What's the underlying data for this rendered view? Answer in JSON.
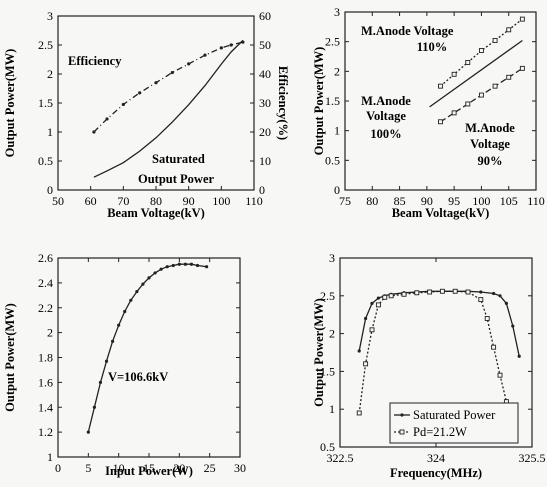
{
  "chart_data": [
    {
      "type": "line",
      "xlabel": "Beam Voltage(kV)",
      "ylabel": "Output Power(MW)",
      "ylabel_right": "Efficiency(%)",
      "xlim": [
        50,
        110
      ],
      "ylim": [
        0,
        3
      ],
      "ylim_right": [
        0,
        60
      ],
      "xticks": [
        "50",
        "60",
        "70",
        "80",
        "90",
        "100",
        "110"
      ],
      "yticks": [
        "0",
        "0.5",
        "1",
        "1.5",
        "2",
        "2.5",
        "3"
      ],
      "yticks_right": [
        "0",
        "10",
        "20",
        "30",
        "40",
        "50",
        "60"
      ],
      "annotations": [
        "Efficiency",
        "Saturated",
        "Output Power"
      ],
      "series": [
        {
          "axis": "left",
          "style": "solid",
          "x": [
            61,
            65,
            70,
            75,
            80,
            85,
            90,
            95,
            100,
            103,
            106.6
          ],
          "y": [
            0.22,
            0.33,
            0.47,
            0.67,
            0.9,
            1.17,
            1.47,
            1.8,
            2.17,
            2.38,
            2.58
          ]
        },
        {
          "axis": "right",
          "style": "dash-dot",
          "marker": "dot",
          "x": [
            61,
            65,
            70,
            75,
            80,
            85,
            90,
            95,
            100,
            103,
            106.6
          ],
          "y": [
            20,
            24.5,
            29.5,
            33.5,
            37,
            40.5,
            43.5,
            46.5,
            49,
            50,
            51
          ]
        }
      ]
    },
    {
      "type": "line",
      "xlabel": "Beam Voltage(kV)",
      "ylabel": "Output Power(MW)",
      "xlim": [
        75,
        110
      ],
      "ylim": [
        0,
        3
      ],
      "xticks": [
        "75",
        "80",
        "85",
        "90",
        "95",
        "100",
        "105",
        "110"
      ],
      "yticks": [
        "0",
        "0.5",
        "1",
        "1.5",
        "2",
        "2.5",
        "3"
      ],
      "annotations": [
        "M.Anode Voltage",
        "110%",
        "M.Anode",
        "Voltage",
        "100%",
        "M.Anode",
        "Voltage",
        "90%"
      ],
      "series": [
        {
          "style": "dotted",
          "marker": "square",
          "x": [
            92.5,
            95,
            97.5,
            100,
            102.5,
            105,
            107.5
          ],
          "y": [
            1.75,
            1.95,
            2.15,
            2.35,
            2.52,
            2.7,
            2.88
          ]
        },
        {
          "style": "solid",
          "x": [
            90.5,
            107.5
          ],
          "y": [
            1.4,
            2.52
          ]
        },
        {
          "style": "dashed",
          "marker": "square",
          "x": [
            92.5,
            95,
            97.5,
            100,
            102.5,
            105,
            107.5
          ],
          "y": [
            1.15,
            1.3,
            1.45,
            1.6,
            1.75,
            1.9,
            2.05
          ]
        }
      ]
    },
    {
      "type": "line",
      "xlabel": "Input Power(W)",
      "ylabel": "Output Power(MW)",
      "xlim": [
        0,
        30
      ],
      "ylim": [
        1,
        2.6
      ],
      "xticks": [
        "0",
        "5",
        "10",
        "15",
        "20",
        "25",
        "30"
      ],
      "yticks": [
        "1",
        "1.2",
        "1.4",
        "1.6",
        "1.8",
        "2",
        "2.2",
        "2.4",
        "2.6"
      ],
      "annotations": [
        "V=106.6kV"
      ],
      "series": [
        {
          "style": "solid",
          "marker": "dot",
          "x": [
            5,
            6,
            7,
            8,
            9,
            10,
            11,
            12,
            13,
            14,
            15,
            16,
            17,
            18,
            19,
            20,
            21,
            22,
            23,
            24.5
          ],
          "y": [
            1.2,
            1.4,
            1.6,
            1.77,
            1.93,
            2.06,
            2.17,
            2.26,
            2.33,
            2.39,
            2.44,
            2.48,
            2.51,
            2.53,
            2.54,
            2.55,
            2.55,
            2.55,
            2.54,
            2.53
          ]
        }
      ]
    },
    {
      "type": "line",
      "xlabel": "Frequency(MHz)",
      "ylabel": "Output Power(MW)",
      "xlim": [
        322.5,
        325.5
      ],
      "ylim": [
        0.5,
        3
      ],
      "xticks": [
        "322.5",
        "324",
        "325.5"
      ],
      "yticks": [
        "0.5",
        "1",
        "1.5",
        "2",
        "2.5",
        "3"
      ],
      "legend_position": "bottom-right",
      "series": [
        {
          "name": "Saturated Power",
          "style": "solid",
          "marker": "dot",
          "x": [
            322.8,
            322.9,
            323.0,
            323.1,
            323.2,
            323.3,
            323.5,
            323.7,
            323.9,
            324.1,
            324.3,
            324.5,
            324.7,
            324.9,
            325.0,
            325.1,
            325.2,
            325.3
          ],
          "y": [
            1.77,
            2.2,
            2.4,
            2.47,
            2.5,
            2.52,
            2.54,
            2.55,
            2.56,
            2.56,
            2.56,
            2.56,
            2.55,
            2.53,
            2.5,
            2.4,
            2.1,
            1.7
          ]
        },
        {
          "name": "Pd=21.2W",
          "style": "dotted",
          "marker": "square",
          "x": [
            322.8,
            322.9,
            323.0,
            323.1,
            323.2,
            323.3,
            323.5,
            323.7,
            323.9,
            324.1,
            324.3,
            324.5,
            324.7,
            324.8,
            324.9,
            325.0,
            325.1,
            325.2
          ],
          "y": [
            0.95,
            1.6,
            2.05,
            2.38,
            2.48,
            2.5,
            2.52,
            2.54,
            2.55,
            2.56,
            2.56,
            2.55,
            2.45,
            2.2,
            1.82,
            1.45,
            1.1,
            0.88
          ]
        }
      ]
    }
  ]
}
